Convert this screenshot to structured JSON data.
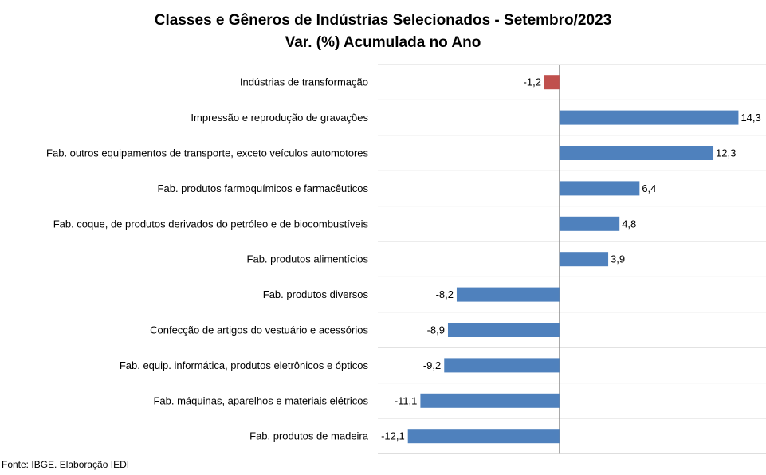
{
  "chart_data": {
    "type": "bar",
    "orientation": "horizontal",
    "title": "Classes e Gêneros de Indústrias Selecionados - Setembro/2023",
    "subtitle": "Var. (%) Acumulada no Ano",
    "categories": [
      "Indústrias de transformação",
      "Impressão e reprodução de gravações",
      "Fab. outros equipamentos de transporte, exceto veículos automotores",
      "Fab. produtos farmoquímicos e farmacêuticos",
      "Fab. coque, de produtos derivados do petróleo e de biocombustíveis",
      "Fab. produtos alimentícios",
      "Fab. produtos diversos",
      "Confecção de artigos do vestuário e acessórios",
      "Fab. equip. informática, produtos eletrônicos e ópticos",
      "Fab. máquinas, aparelhos e materiais elétricos",
      "Fab. produtos de madeira"
    ],
    "values": [
      -1.2,
      14.3,
      12.3,
      6.4,
      4.8,
      3.9,
      -8.2,
      -8.9,
      -9.2,
      -11.1,
      -12.1
    ],
    "value_labels": [
      "-1,2",
      "14,3",
      "12,3",
      "6,4",
      "4,8",
      "3,9",
      "-8,2",
      "-8,9",
      "-9,2",
      "-11,1",
      "-12,1"
    ],
    "xlim": [
      -14.5,
      16.5
    ],
    "grid": true,
    "legend": "none",
    "colors": {
      "highlight": "#c0504d",
      "default": "#4f81bd"
    }
  },
  "footer": "Fonte: IBGE. Elaboração IEDI"
}
